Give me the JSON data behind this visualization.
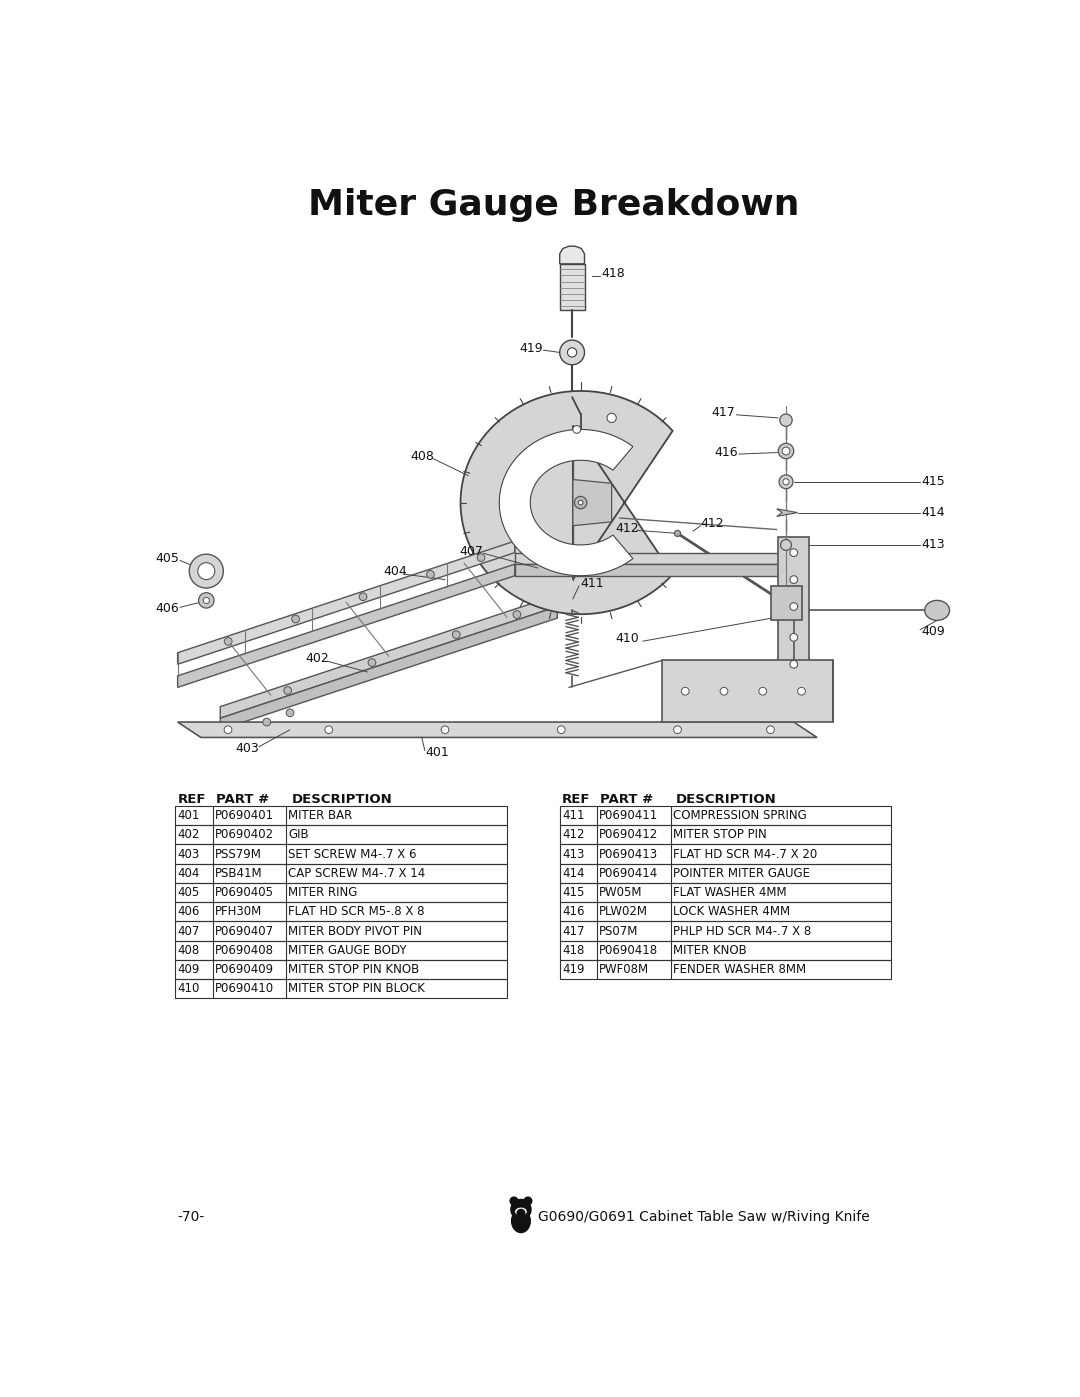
{
  "title": "Miter Gauge Breakdown",
  "title_fontsize": 26,
  "title_fontweight": "bold",
  "background_color": "#ffffff",
  "page_number": "-70-",
  "footer_text": "G0690/G0691 Cabinet Table Saw w/Riving Knife",
  "parts_left": [
    [
      "401",
      "P0690401",
      "MITER BAR"
    ],
    [
      "402",
      "P0690402",
      "GIB"
    ],
    [
      "403",
      "PSS79M",
      "SET SCREW M4-.7 X 6"
    ],
    [
      "404",
      "PSB41M",
      "CAP SCREW M4-.7 X 14"
    ],
    [
      "405",
      "P0690405",
      "MITER RING"
    ],
    [
      "406",
      "PFH30M",
      "FLAT HD SCR M5-.8 X 8"
    ],
    [
      "407",
      "P0690407",
      "MITER BODY PIVOT PIN"
    ],
    [
      "408",
      "P0690408",
      "MITER GAUGE BODY"
    ],
    [
      "409",
      "P0690409",
      "MITER STOP PIN KNOB"
    ],
    [
      "410",
      "P0690410",
      "MITER STOP PIN BLOCK"
    ]
  ],
  "parts_right": [
    [
      "411",
      "P0690411",
      "COMPRESSION SPRING"
    ],
    [
      "412",
      "P0690412",
      "MITER STOP PIN"
    ],
    [
      "413",
      "P0690413",
      "FLAT HD SCR M4-.7 X 20"
    ],
    [
      "414",
      "P0690414",
      "POINTER MITER GAUGE"
    ],
    [
      "415",
      "PW05M",
      "FLAT WASHER 4MM"
    ],
    [
      "416",
      "PLW02M",
      "LOCK WASHER 4MM"
    ],
    [
      "417",
      "PS07M",
      "PHLP HD SCR M4-.7 X 8"
    ],
    [
      "418",
      "P0690418",
      "MITER KNOB"
    ],
    [
      "419",
      "PWF08M",
      "FENDER WASHER 8MM"
    ]
  ],
  "col_headers": [
    "REF",
    "PART #",
    "DESCRIPTION"
  ],
  "table_fontsize": 8.5,
  "header_fontsize": 9.5,
  "fig_width": 10.8,
  "fig_height": 13.97,
  "dpi": 100
}
